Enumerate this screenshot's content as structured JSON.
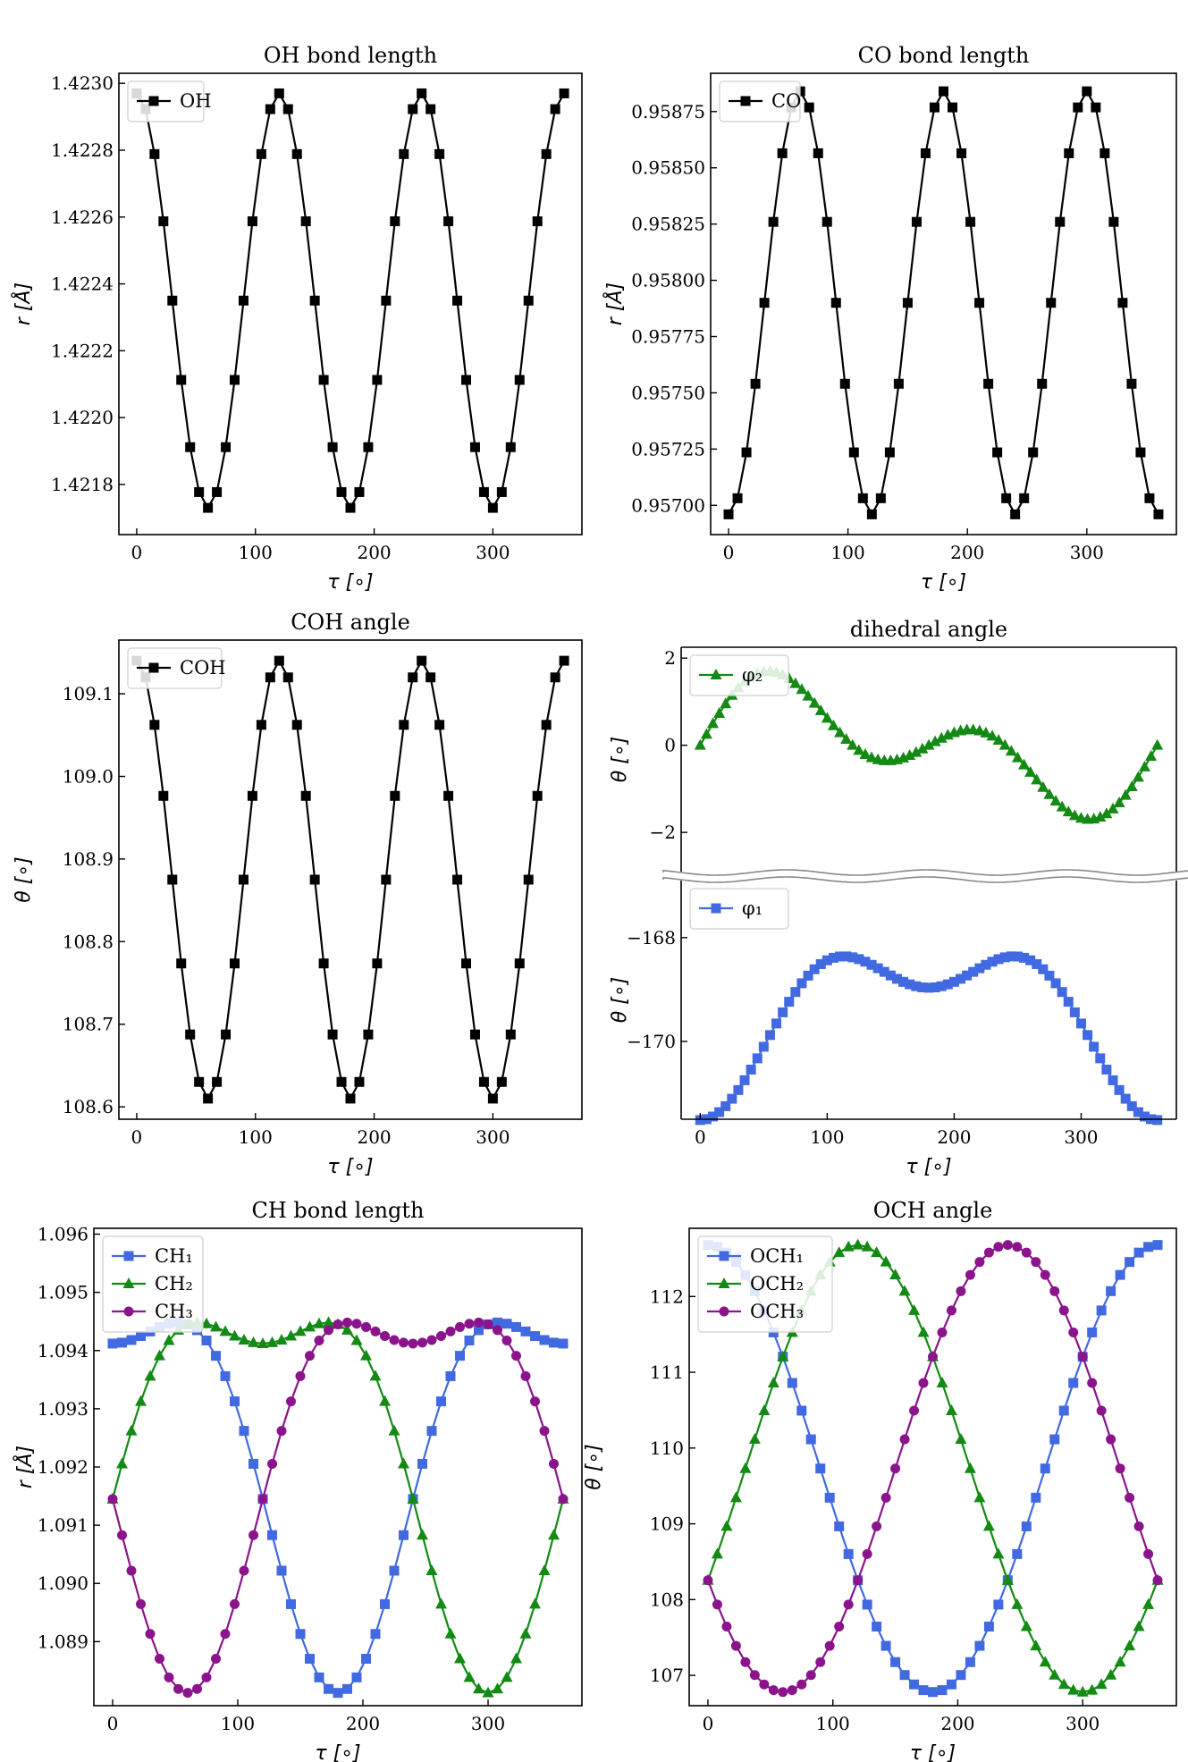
{
  "chart_data": [
    {
      "type": "line",
      "title": "OH bond length",
      "xlabel": "τ [∘]",
      "ylabel": "r [Å]",
      "xticks": [
        "0",
        "100",
        "200",
        "300"
      ],
      "yticks": [
        "1.4218",
        "1.4220",
        "1.4222",
        "1.4224",
        "1.4226",
        "1.4228",
        "1.4230"
      ],
      "xlim": [
        -15,
        375
      ],
      "ylim": [
        1.42165,
        1.42303
      ],
      "legend_position": "upper-left",
      "series": [
        {
          "name": "OH",
          "color": "#000000",
          "marker": "square",
          "func": "cos",
          "x_start": 0,
          "x_end": 360,
          "x_step": 7.5,
          "mean": 1.42235,
          "amplitude": 0.00062,
          "period": 120,
          "phase": 0
        }
      ]
    },
    {
      "type": "line",
      "title": "CO bond length",
      "xlabel": "τ [∘]",
      "ylabel": "r [Å]",
      "xticks": [
        "0",
        "100",
        "200",
        "300"
      ],
      "yticks": [
        "0.95700",
        "0.95725",
        "0.95750",
        "0.95775",
        "0.95800",
        "0.95825",
        "0.95850",
        "0.95875"
      ],
      "xlim": [
        -15,
        375
      ],
      "ylim": [
        0.95687,
        0.95892
      ],
      "legend_position": "upper-left",
      "series": [
        {
          "name": "CO",
          "color": "#000000",
          "marker": "square",
          "func": "cos",
          "x_start": 0,
          "x_end": 360,
          "x_step": 7.5,
          "mean": 0.9579,
          "amplitude": -0.00094,
          "period": 120,
          "phase": 0
        }
      ]
    },
    {
      "type": "line",
      "title": "COH angle",
      "xlabel": "τ [∘]",
      "ylabel": "θ [∘]",
      "xticks": [
        "0",
        "100",
        "200",
        "300"
      ],
      "yticks": [
        "108.6",
        "108.7",
        "108.8",
        "108.9",
        "109.0",
        "109.1"
      ],
      "xlim": [
        -15,
        375
      ],
      "ylim": [
        108.585,
        109.165
      ],
      "legend_position": "upper-left",
      "series": [
        {
          "name": "COH",
          "color": "#000000",
          "marker": "square",
          "func": "cos",
          "x_start": 0,
          "x_end": 360,
          "x_step": 7.5,
          "mean": 108.875,
          "amplitude": 0.265,
          "period": 120,
          "phase": 0
        }
      ]
    },
    {
      "type": "line",
      "title": "dihedral angle",
      "xlabel": "τ [∘]",
      "ylabel": "θ [∘]",
      "xticks": [
        "0",
        "100",
        "200",
        "300"
      ],
      "broken_axis": true,
      "panels": [
        {
          "yticks": [
            "−2",
            "0",
            "2"
          ],
          "ytick_values": [
            -2,
            0,
            2
          ],
          "ylim": [
            -2.9,
            2.25
          ],
          "series": [
            {
              "name": "φ₂",
              "color": "#138a13",
              "marker": "triangle",
              "func": "dih2",
              "x_start": 0,
              "x_end": 360,
              "x_step": 5,
              "amplitude": 1.7
            }
          ]
        },
        {
          "yticks": [
            "−168",
            "−170"
          ],
          "ytick_values": [
            -168,
            -170
          ],
          "ylim": [
            -171.5,
            -166.9
          ],
          "series": [
            {
              "name": "φ₁",
              "color": "#4169e1",
              "marker": "square",
              "func": "dih1",
              "x_start": 0,
              "x_end": 360,
              "x_step": 5,
              "mean": -169.425,
              "amplitude": 1.275,
              "second_harmonic": 0.64
            }
          ]
        }
      ],
      "xlim": [
        -15,
        375
      ],
      "legend_position": "upper-left"
    },
    {
      "type": "line",
      "title": "CH bond length",
      "xlabel": "τ [∘]",
      "ylabel": "r [Å]",
      "xticks": [
        "0",
        "100",
        "200",
        "300"
      ],
      "yticks": [
        "1.089",
        "1.090",
        "1.091",
        "1.092",
        "1.093",
        "1.094",
        "1.095",
        "1.096"
      ],
      "xlim": [
        -15,
        375
      ],
      "ylim": [
        1.0879,
        1.0961
      ],
      "legend_position": "upper-left",
      "series": [
        {
          "name": "CH₁",
          "color": "#4169e1",
          "marker": "square",
          "func": "ch",
          "x_start": 0,
          "x_end": 360,
          "x_step": 7.5,
          "shift": 0,
          "mean": 1.09234,
          "a1": 0.003,
          "a2": -0.00122
        },
        {
          "name": "CH₂",
          "color": "#138a13",
          "marker": "triangle",
          "func": "ch",
          "x_start": 0,
          "x_end": 360,
          "x_step": 7.5,
          "shift": 120,
          "mean": 1.09234,
          "a1": 0.003,
          "a2": -0.00122
        },
        {
          "name": "CH₃",
          "color": "#8b138b",
          "marker": "circle",
          "func": "ch",
          "x_start": 0,
          "x_end": 360,
          "x_step": 7.5,
          "shift": 240,
          "mean": 1.09234,
          "a1": 0.003,
          "a2": -0.00122
        }
      ]
    },
    {
      "type": "line",
      "title": "OCH angle",
      "xlabel": "τ [∘]",
      "ylabel": "θ [∘]",
      "xticks": [
        "0",
        "100",
        "200",
        "300"
      ],
      "yticks": [
        "107",
        "108",
        "109",
        "110",
        "111",
        "112"
      ],
      "xlim": [
        -15,
        375
      ],
      "ylim": [
        106.6,
        112.9
      ],
      "legend_position": "upper-left",
      "series": [
        {
          "name": "OCH₁",
          "color": "#4169e1",
          "marker": "square",
          "func": "cos",
          "x_start": 0,
          "x_end": 360,
          "x_step": 7.5,
          "mean": 109.73,
          "amplitude": 2.95,
          "period": 360,
          "phase": 0
        },
        {
          "name": "OCH₂",
          "color": "#138a13",
          "marker": "triangle",
          "func": "cos",
          "x_start": 0,
          "x_end": 360,
          "x_step": 7.5,
          "mean": 109.73,
          "amplitude": 2.95,
          "period": 360,
          "phase": 120
        },
        {
          "name": "OCH₃",
          "color": "#8b138b",
          "marker": "circle",
          "func": "cos",
          "x_start": 0,
          "x_end": 360,
          "x_step": 7.5,
          "mean": 109.73,
          "amplitude": 2.95,
          "period": 360,
          "phase": 240
        }
      ]
    }
  ]
}
